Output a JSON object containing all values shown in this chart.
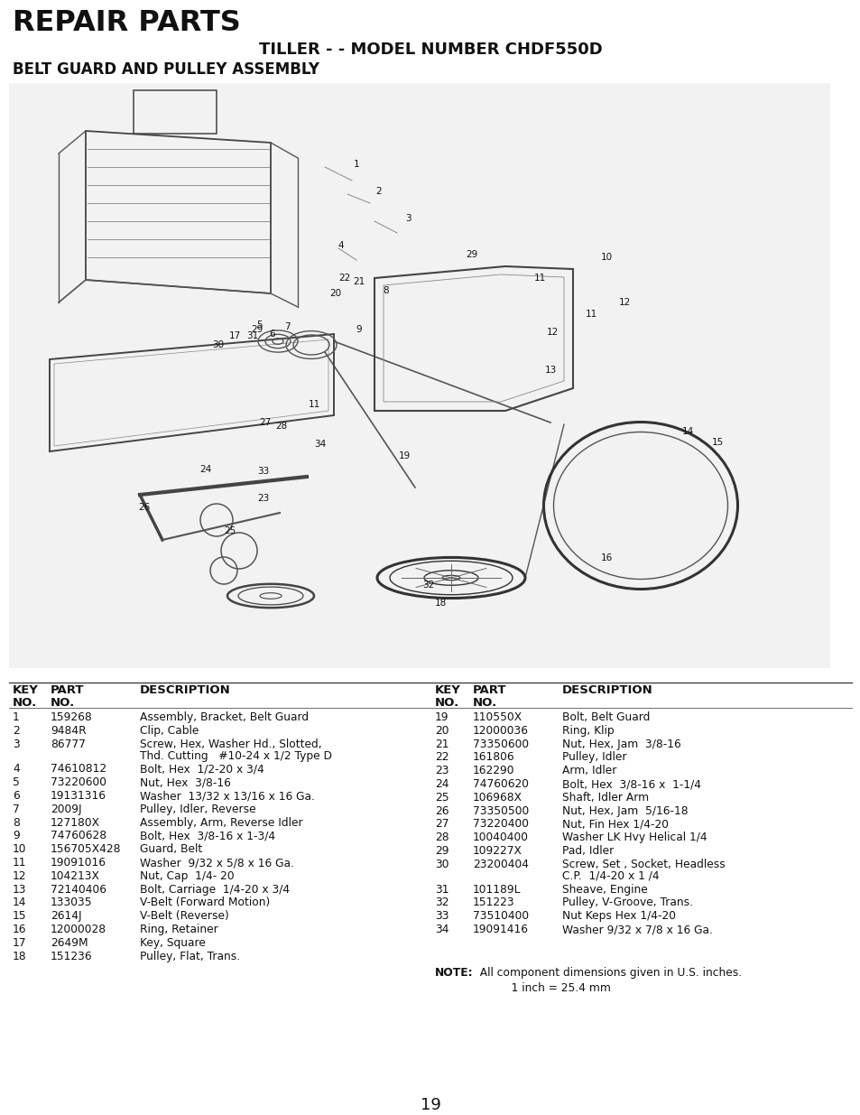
{
  "title_main": "REPAIR PARTS",
  "title_sub": "TILLER - - MODEL NUMBER CHDF550D",
  "title_section": "BELT GUARD AND PULLEY ASSEMBLY",
  "page_number": "19",
  "background_color": "#ffffff",
  "left_parts": [
    {
      "key": "1",
      "part": "159268",
      "desc1": "Assembly, Bracket, Belt Guard",
      "desc2": ""
    },
    {
      "key": "2",
      "part": "9484R",
      "desc1": "Clip, Cable",
      "desc2": ""
    },
    {
      "key": "3",
      "part": "86777",
      "desc1": "Screw, Hex, Washer Hd., Slotted,",
      "desc2": "Thd. Cutting   #10-24 x 1/2 Type D"
    },
    {
      "key": "4",
      "part": "74610812",
      "desc1": "Bolt, Hex  1/2-20 x 3/4",
      "desc2": ""
    },
    {
      "key": "5",
      "part": "73220600",
      "desc1": "Nut, Hex  3/8-16",
      "desc2": ""
    },
    {
      "key": "6",
      "part": "19131316",
      "desc1": "Washer  13/32 x 13/16 x 16 Ga.",
      "desc2": ""
    },
    {
      "key": "7",
      "part": "2009J",
      "desc1": "Pulley, Idler, Reverse",
      "desc2": ""
    },
    {
      "key": "8",
      "part": "127180X",
      "desc1": "Assembly, Arm, Reverse Idler",
      "desc2": ""
    },
    {
      "key": "9",
      "part": "74760628",
      "desc1": "Bolt, Hex  3/8-16 x 1-3/4",
      "desc2": ""
    },
    {
      "key": "10",
      "part": "156705X428",
      "desc1": "Guard, Belt",
      "desc2": ""
    },
    {
      "key": "11",
      "part": "19091016",
      "desc1": "Washer  9/32 x 5/8 x 16 Ga.",
      "desc2": ""
    },
    {
      "key": "12",
      "part": "104213X",
      "desc1": "Nut, Cap  1/4- 20",
      "desc2": ""
    },
    {
      "key": "13",
      "part": "72140406",
      "desc1": "Bolt, Carriage  1/4-20 x 3/4",
      "desc2": ""
    },
    {
      "key": "14",
      "part": "133035",
      "desc1": "V-Belt (Forward Motion)",
      "desc2": ""
    },
    {
      "key": "15",
      "part": "2614J",
      "desc1": "V-Belt (Reverse)",
      "desc2": ""
    },
    {
      "key": "16",
      "part": "12000028",
      "desc1": "Ring, Retainer",
      "desc2": ""
    },
    {
      "key": "17",
      "part": "2649M",
      "desc1": "Key, Square",
      "desc2": ""
    },
    {
      "key": "18",
      "part": "151236",
      "desc1": "Pulley, Flat, Trans.",
      "desc2": ""
    }
  ],
  "right_parts": [
    {
      "key": "19",
      "part": "110550X",
      "desc1": "Bolt, Belt Guard",
      "desc2": ""
    },
    {
      "key": "20",
      "part": "12000036",
      "desc1": "Ring, Klip",
      "desc2": ""
    },
    {
      "key": "21",
      "part": "73350600",
      "desc1": "Nut, Hex, Jam  3/8-16",
      "desc2": ""
    },
    {
      "key": "22",
      "part": "161806",
      "desc1": "Pulley, Idler",
      "desc2": ""
    },
    {
      "key": "23",
      "part": "162290",
      "desc1": "Arm, Idler",
      "desc2": ""
    },
    {
      "key": "24",
      "part": "74760620",
      "desc1": "Bolt, Hex  3/8-16 x  1-1/4",
      "desc2": ""
    },
    {
      "key": "25",
      "part": "106968X",
      "desc1": "Shaft, Idler Arm",
      "desc2": ""
    },
    {
      "key": "26",
      "part": "73350500",
      "desc1": "Nut, Hex, Jam  5/16-18",
      "desc2": ""
    },
    {
      "key": "27",
      "part": "73220400",
      "desc1": "Nut, Fin Hex 1/4-20",
      "desc2": ""
    },
    {
      "key": "28",
      "part": "10040400",
      "desc1": "Washer LK Hvy Helical 1/4",
      "desc2": ""
    },
    {
      "key": "29",
      "part": "109227X",
      "desc1": "Pad, Idler",
      "desc2": ""
    },
    {
      "key": "30",
      "part": "23200404",
      "desc1": "Screw, Set , Socket, Headless",
      "desc2": "C.P.  1/4-20 x 1 /4"
    },
    {
      "key": "31",
      "part": "101189L",
      "desc1": "Sheave, Engine",
      "desc2": ""
    },
    {
      "key": "32",
      "part": "151223",
      "desc1": "Pulley, V-Groove, Trans.",
      "desc2": ""
    },
    {
      "key": "33",
      "part": "73510400",
      "desc1": "Nut Keps Hex 1/4-20",
      "desc2": ""
    },
    {
      "key": "34",
      "part": "19091416",
      "desc1": "Washer 9/32 x 7/8 x 16 Ga.",
      "desc2": ""
    }
  ],
  "note_bold": "NOTE:",
  "note_text": "  All component dimensions given in U.S. inches.\n           1 inch = 25.4 mm"
}
